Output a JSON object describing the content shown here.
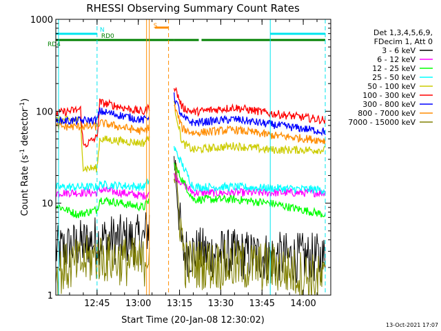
{
  "chart_data": {
    "type": "line",
    "title": "RHESSI Observing Summary Count Rates",
    "xlabel": "Start Time (20-Jan-08 12:30:02)",
    "ylabel_main": "Count Rate (s",
    "ylabel_sup1": "-1",
    "ylabel_mid": " detector",
    "ylabel_sup2": "-1",
    "ylabel_end": ")",
    "footer": "13-Oct-2021 17:07",
    "x_range": [
      "12:30",
      "14:10"
    ],
    "y_scale": "log",
    "y_range": [
      1,
      1000
    ],
    "x_ticks": [
      "12:45",
      "13:00",
      "13:15",
      "13:30",
      "13:45",
      "14:00"
    ],
    "y_tick_labels": [
      {
        "value": 1,
        "label": "1"
      },
      {
        "value": 10,
        "label": "10"
      },
      {
        "value": 100,
        "label": "100"
      },
      {
        "value": 1000,
        "label": "1000"
      }
    ],
    "legend_header": [
      "Det 1,3,4,5,6,9,",
      "FDecim 1, Att 0"
    ],
    "status_flags": [
      {
        "label": "N",
        "color": "#00e5ee",
        "segments": [
          [
            "12:30",
            "12:45"
          ],
          [
            "13:48",
            "14:08"
          ]
        ]
      },
      {
        "label": "RD0",
        "color": "#008000",
        "segments": [
          [
            "12:30",
            "13:13"
          ],
          [
            "13:13",
            "13:22"
          ],
          [
            "13:23",
            "14:08"
          ]
        ]
      },
      {
        "label": "RD4",
        "color": "#008000",
        "segments": [
          [
            "12:30",
            "12:45"
          ]
        ]
      },
      {
        "label": "S",
        "color": "#ff8c00",
        "segments": [
          [
            "13:06",
            "13:11"
          ]
        ]
      }
    ],
    "vertical_markers": [
      {
        "time": "12:31",
        "color": "#00e5ee",
        "style": "solid"
      },
      {
        "time": "12:45",
        "color": "#00e5ee",
        "style": "dashed"
      },
      {
        "time": "13:03",
        "color": "#ff8c00",
        "style": "solid"
      },
      {
        "time": "13:04",
        "color": "#ff8c00",
        "style": "solid"
      },
      {
        "time": "13:11",
        "color": "#ff8c00",
        "style": "dashed"
      },
      {
        "time": "13:48",
        "color": "#00e5ee",
        "style": "solid"
      },
      {
        "time": "14:08",
        "color": "#00e5ee",
        "style": "dashed"
      }
    ],
    "gap": [
      "13:04",
      "13:13"
    ],
    "series": [
      {
        "name": "3 - 6 keV",
        "color": "#000000",
        "points": [
          [
            "12:30",
            3.0
          ],
          [
            "12:45",
            4.0
          ],
          [
            "13:02",
            4.0
          ],
          [
            "13:13",
            35
          ],
          [
            "13:16",
            3.0
          ],
          [
            "13:50",
            2.6
          ],
          [
            "14:08",
            2.5
          ]
        ]
      },
      {
        "name": "6 - 12 keV",
        "color": "#ff00ff",
        "points": [
          [
            "12:30",
            13
          ],
          [
            "12:45",
            13
          ],
          [
            "12:46",
            14
          ],
          [
            "13:02",
            12
          ],
          [
            "13:13",
            20
          ],
          [
            "13:20",
            13
          ],
          [
            "13:35",
            13
          ],
          [
            "14:08",
            13
          ]
        ]
      },
      {
        "name": "12 - 25 keV",
        "color": "#00ff00",
        "points": [
          [
            "12:30",
            9.5
          ],
          [
            "12:38",
            7.5
          ],
          [
            "12:45",
            8.5
          ],
          [
            "12:46",
            11
          ],
          [
            "13:02",
            9
          ],
          [
            "13:13",
            26
          ],
          [
            "13:20",
            11
          ],
          [
            "13:35",
            11
          ],
          [
            "13:48",
            10
          ],
          [
            "14:08",
            7.5
          ]
        ]
      },
      {
        "name": "25 - 50 keV",
        "color": "#00ffff",
        "points": [
          [
            "12:30",
            15
          ],
          [
            "12:45",
            15
          ],
          [
            "12:46",
            16
          ],
          [
            "13:02",
            15
          ],
          [
            "13:13",
            40
          ],
          [
            "13:20",
            15
          ],
          [
            "13:35",
            15
          ],
          [
            "14:08",
            14
          ]
        ]
      },
      {
        "name": "50 - 100 keV",
        "color": "#cccc00",
        "points": [
          [
            "12:30",
            80
          ],
          [
            "12:39",
            80
          ],
          [
            "12:40",
            24
          ],
          [
            "12:45",
            24
          ],
          [
            "12:46",
            50
          ],
          [
            "13:02",
            45
          ],
          [
            "13:13",
            120
          ],
          [
            "13:16",
            45
          ],
          [
            "13:20",
            38
          ],
          [
            "13:35",
            42
          ],
          [
            "13:48",
            38
          ],
          [
            "14:08",
            38
          ]
        ]
      },
      {
        "name": "100 - 300 keV",
        "color": "#ff0000",
        "points": [
          [
            "12:30",
            95
          ],
          [
            "12:39",
            105
          ],
          [
            "12:40",
            42
          ],
          [
            "12:45",
            52
          ],
          [
            "12:46",
            125
          ],
          [
            "13:02",
            98
          ],
          [
            "13:13",
            190
          ],
          [
            "13:16",
            110
          ],
          [
            "13:20",
            98
          ],
          [
            "13:35",
            110
          ],
          [
            "13:48",
            95
          ],
          [
            "14:08",
            80
          ]
        ]
      },
      {
        "name": "300 - 800 keV",
        "color": "#0000ff",
        "points": [
          [
            "12:30",
            78
          ],
          [
            "12:45",
            80
          ],
          [
            "12:46",
            100
          ],
          [
            "13:02",
            80
          ],
          [
            "13:13",
            145
          ],
          [
            "13:16",
            85
          ],
          [
            "13:20",
            75
          ],
          [
            "13:35",
            82
          ],
          [
            "13:48",
            72
          ],
          [
            "14:08",
            60
          ]
        ]
      },
      {
        "name": "800 - 7000 keV",
        "color": "#ff8c00",
        "points": [
          [
            "12:30",
            68
          ],
          [
            "12:45",
            68
          ],
          [
            "12:46",
            75
          ],
          [
            "13:02",
            60
          ],
          [
            "13:13",
            115
          ],
          [
            "13:16",
            65
          ],
          [
            "13:20",
            58
          ],
          [
            "13:35",
            63
          ],
          [
            "13:48",
            55
          ],
          [
            "14:08",
            48
          ]
        ]
      },
      {
        "name": "7000 - 15000 keV",
        "color": "#808000",
        "points": [
          [
            "12:30",
            1.8
          ],
          [
            "12:45",
            2.6
          ],
          [
            "13:02",
            2.2
          ],
          [
            "13:13",
            25
          ],
          [
            "13:17",
            2.2
          ],
          [
            "13:50",
            2.0
          ],
          [
            "14:08",
            1.4
          ]
        ]
      }
    ]
  }
}
